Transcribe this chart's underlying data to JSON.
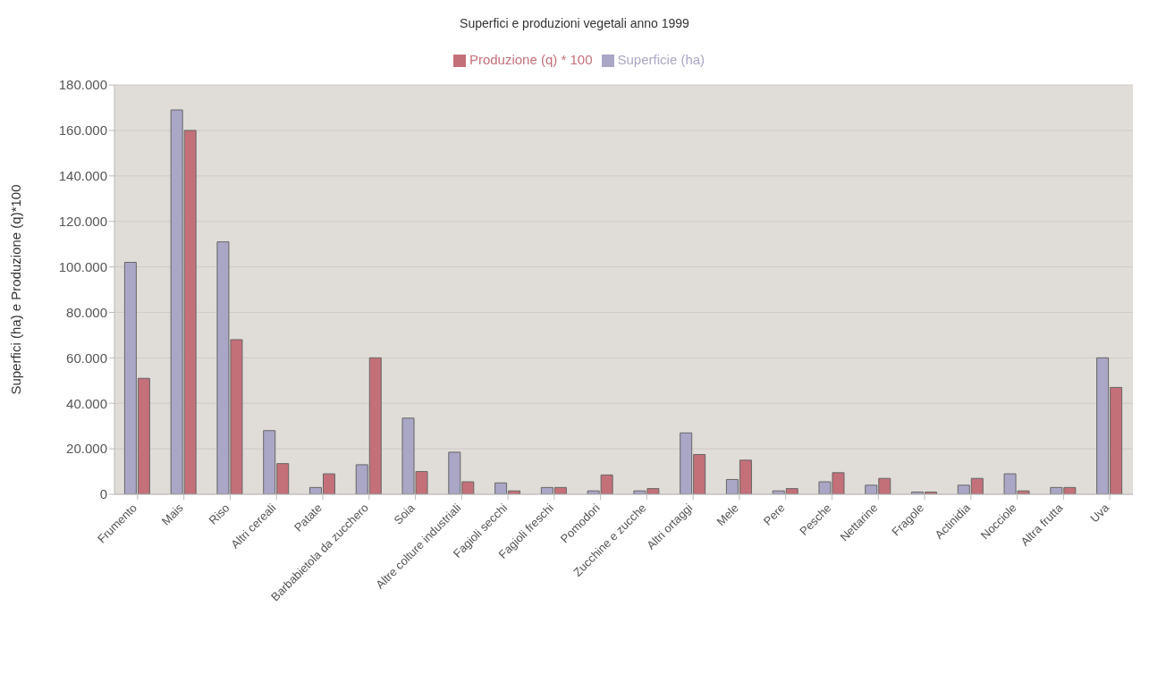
{
  "chart_data": {
    "type": "bar",
    "title": "Superfici e produzioni vegetali anno 1999",
    "ylabel": "Superfici (ha) e Produzione (q)*100",
    "categories": [
      "Frumento",
      "Mais",
      "Riso",
      "Altri cereali",
      "Patate",
      "Barbabietola da zucchero",
      "Soia",
      "Altre colture industriali",
      "Fagioli secchi",
      "Fagioli freschi",
      "Pomodori",
      "Zucchine e zucche",
      "Altri ortaggi",
      "Mele",
      "Pere",
      "Pesche",
      "Nettarine",
      "Fragole",
      "Actinidia",
      "Nocciole",
      "Altra frutta",
      "Uva"
    ],
    "series": [
      {
        "name": "Superficie (ha)",
        "color": "#aaa6c6",
        "values": [
          102000,
          169000,
          111000,
          28000,
          3000,
          13000,
          33500,
          18500,
          5000,
          3000,
          1500,
          1500,
          27000,
          6500,
          1500,
          5500,
          4000,
          1000,
          4000,
          9000,
          3000,
          60000
        ]
      },
      {
        "name": "Produzione (q) * 100",
        "color": "#c47078",
        "values": [
          51000,
          160000,
          68000,
          13500,
          9000,
          60000,
          10000,
          5500,
          1500,
          3000,
          8500,
          2500,
          17500,
          15000,
          2500,
          9500,
          7000,
          1000,
          7000,
          1500,
          3000,
          47000
        ]
      }
    ],
    "ylim": [
      0,
      180000
    ],
    "yticks": [
      {
        "value": 0,
        "label": "0"
      },
      {
        "value": 20000,
        "label": "20.000"
      },
      {
        "value": 40000,
        "label": "40.000"
      },
      {
        "value": 60000,
        "label": "60.000"
      },
      {
        "value": 80000,
        "label": "80.000"
      },
      {
        "value": 100000,
        "label": "100.000"
      },
      {
        "value": 120000,
        "label": "120.000"
      },
      {
        "value": 140000,
        "label": "140.000"
      },
      {
        "value": 160000,
        "label": "160.000"
      },
      {
        "value": 180000,
        "label": "180.000"
      }
    ],
    "grid": "y",
    "legend": "top"
  }
}
